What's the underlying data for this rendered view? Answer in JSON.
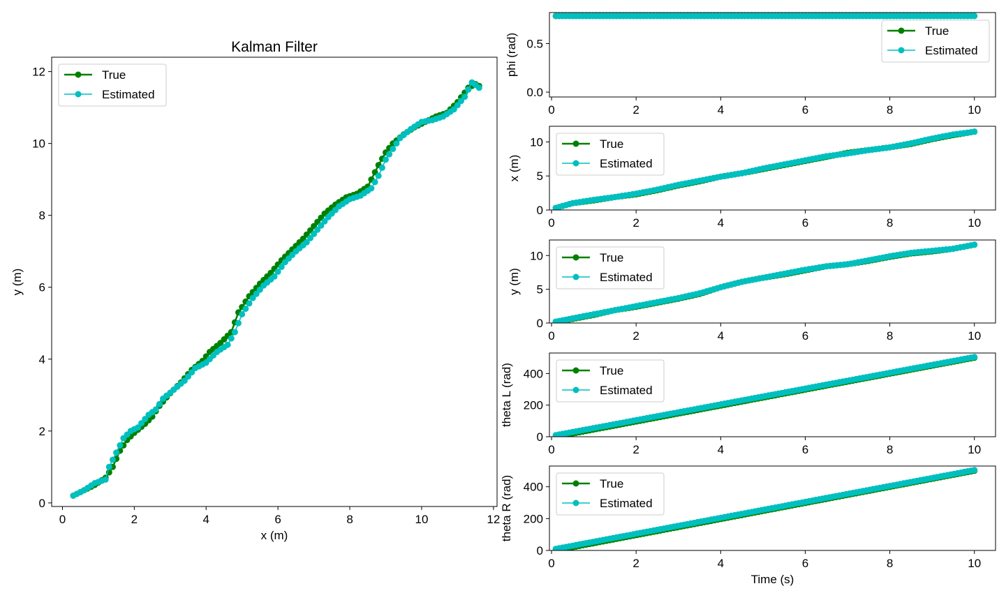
{
  "figure": {
    "colors": {
      "true": "#008000",
      "estimated": "#00bfbf",
      "axis": "#000000",
      "background": "#ffffff"
    }
  },
  "chart_data": [
    {
      "id": "trajectory",
      "type": "line",
      "title": "Kalman Filter",
      "xlabel": "x (m)",
      "ylabel": "y (m)",
      "xlim": [
        -0.3,
        12.1
      ],
      "ylim": [
        -0.1,
        12.4
      ],
      "xticks": [
        0,
        2,
        4,
        6,
        8,
        10,
        12
      ],
      "yticks": [
        0,
        2,
        4,
        6,
        8,
        10,
        12
      ],
      "grid": false,
      "legend": "upper-left",
      "series": [
        {
          "name": "True",
          "color": "#008000",
          "marker": "o",
          "x": [
            0.3,
            0.6,
            0.9,
            1.2,
            1.4,
            1.6,
            1.8,
            2.0,
            2.3,
            2.5,
            2.7,
            3.0,
            3.3,
            3.6,
            3.9,
            4.1,
            4.4,
            4.7,
            4.9,
            5.2,
            5.5,
            5.8,
            6.1,
            6.4,
            6.7,
            7.0,
            7.3,
            7.6,
            7.9,
            8.2,
            8.5,
            8.8,
            9.0,
            9.2,
            9.5,
            9.8,
            10.1,
            10.4,
            10.7,
            11.0,
            11.3,
            11.5,
            11.6
          ],
          "y": [
            0.2,
            0.35,
            0.5,
            0.7,
            1.0,
            1.45,
            1.75,
            1.95,
            2.2,
            2.4,
            2.7,
            3.05,
            3.35,
            3.7,
            3.95,
            4.2,
            4.45,
            4.75,
            5.3,
            5.75,
            6.1,
            6.4,
            6.75,
            7.05,
            7.35,
            7.7,
            8.05,
            8.3,
            8.5,
            8.6,
            8.8,
            9.4,
            9.75,
            10.0,
            10.25,
            10.45,
            10.6,
            10.75,
            10.85,
            11.15,
            11.55,
            11.65,
            11.6
          ]
        },
        {
          "name": "Estimated",
          "color": "#00bfbf",
          "marker": "o",
          "x": [
            0.3,
            0.6,
            0.9,
            1.2,
            1.3,
            1.5,
            1.7,
            1.9,
            2.1,
            2.4,
            2.6,
            2.8,
            3.1,
            3.4,
            3.7,
            4.0,
            4.3,
            4.6,
            4.8,
            5.0,
            5.3,
            5.6,
            5.9,
            6.2,
            6.5,
            6.8,
            7.1,
            7.4,
            7.7,
            8.0,
            8.3,
            8.6,
            8.8,
            9.0,
            9.2,
            9.4,
            9.7,
            10.0,
            10.3,
            10.6,
            10.9,
            11.2,
            11.4,
            11.6
          ],
          "y": [
            0.2,
            0.35,
            0.55,
            0.65,
            1.0,
            1.4,
            1.8,
            2.0,
            2.1,
            2.45,
            2.6,
            2.9,
            3.15,
            3.4,
            3.75,
            3.9,
            4.2,
            4.4,
            4.75,
            5.25,
            5.7,
            6.05,
            6.3,
            6.7,
            7.0,
            7.25,
            7.6,
            7.95,
            8.25,
            8.45,
            8.55,
            8.75,
            9.1,
            9.55,
            9.85,
            10.15,
            10.4,
            10.6,
            10.65,
            10.75,
            10.95,
            11.3,
            11.7,
            11.55
          ]
        }
      ]
    },
    {
      "id": "phi",
      "type": "line",
      "ylabel": "phi (rad)",
      "xlim": [
        -0.05,
        10.5
      ],
      "ylim": [
        -0.05,
        0.82
      ],
      "xticks": [
        0,
        2,
        4,
        6,
        8,
        10
      ],
      "yticks": [
        0.0,
        0.5
      ],
      "yticklabels": [
        "0.0",
        "0.5"
      ],
      "grid": false,
      "legend": "upper-right",
      "series": [
        {
          "name": "True",
          "color": "#008000",
          "x": [
            0.1,
            10
          ],
          "y": [
            0.785,
            0.785
          ]
        },
        {
          "name": "Estimated",
          "color": "#00bfbf",
          "x": [
            0.1,
            10
          ],
          "y": [
            0.785,
            0.785
          ]
        }
      ]
    },
    {
      "id": "x_state",
      "type": "line",
      "ylabel": "x (m)",
      "xlim": [
        -0.05,
        10.5
      ],
      "ylim": [
        0,
        12.3
      ],
      "xticks": [
        0,
        2,
        4,
        6,
        8,
        10
      ],
      "yticks": [
        0,
        5,
        10
      ],
      "grid": false,
      "legend": "upper-left",
      "series": [
        {
          "name": "True",
          "color": "#008000",
          "x": [
            0.1,
            0.5,
            1,
            1.5,
            2,
            2.5,
            3,
            3.5,
            4,
            4.5,
            5,
            5.5,
            6,
            6.5,
            7,
            7.5,
            8,
            8.5,
            9,
            9.5,
            10
          ],
          "y": [
            0.3,
            1.0,
            1.4,
            1.9,
            2.3,
            2.9,
            3.6,
            4.2,
            4.9,
            5.4,
            6.0,
            6.6,
            7.2,
            7.8,
            8.4,
            8.8,
            9.2,
            9.7,
            10.4,
            11.0,
            11.5
          ]
        },
        {
          "name": "Estimated",
          "color": "#00bfbf",
          "x": [
            0.1,
            0.5,
            1,
            1.5,
            2,
            2.5,
            3,
            3.5,
            4,
            4.5,
            5,
            5.5,
            6,
            6.5,
            7,
            7.5,
            8,
            8.5,
            9,
            9.5,
            10
          ],
          "y": [
            0.3,
            1.0,
            1.5,
            1.9,
            2.4,
            3.0,
            3.7,
            4.3,
            4.9,
            5.4,
            6.1,
            6.7,
            7.3,
            7.9,
            8.3,
            8.8,
            9.2,
            9.8,
            10.5,
            11.1,
            11.5
          ]
        }
      ]
    },
    {
      "id": "y_state",
      "type": "line",
      "ylabel": "y (m)",
      "xlim": [
        -0.05,
        10.5
      ],
      "ylim": [
        0,
        12.3
      ],
      "xticks": [
        0,
        2,
        4,
        6,
        8,
        10
      ],
      "yticks": [
        0,
        5,
        10
      ],
      "grid": false,
      "legend": "upper-left",
      "series": [
        {
          "name": "True",
          "color": "#008000",
          "x": [
            0.1,
            0.5,
            1,
            1.5,
            2,
            2.5,
            3,
            3.5,
            4,
            4.5,
            5,
            5.5,
            6,
            6.5,
            7,
            7.5,
            8,
            8.5,
            9,
            9.5,
            10
          ],
          "y": [
            0.2,
            0.6,
            1.2,
            1.9,
            2.4,
            3.0,
            3.6,
            4.3,
            5.3,
            6.1,
            6.7,
            7.2,
            7.8,
            8.4,
            8.7,
            9.2,
            9.8,
            10.3,
            10.6,
            11.0,
            11.6
          ]
        },
        {
          "name": "Estimated",
          "color": "#00bfbf",
          "x": [
            0.1,
            0.5,
            1,
            1.5,
            2,
            2.5,
            3,
            3.5,
            4,
            4.5,
            5,
            5.5,
            6,
            6.5,
            7,
            7.5,
            8,
            8.5,
            9,
            9.5,
            10
          ],
          "y": [
            0.2,
            0.7,
            1.3,
            1.9,
            2.5,
            3.1,
            3.7,
            4.4,
            5.3,
            6.1,
            6.7,
            7.3,
            7.9,
            8.4,
            8.7,
            9.3,
            9.9,
            10.4,
            10.7,
            11.0,
            11.6
          ]
        }
      ]
    },
    {
      "id": "theta_l",
      "type": "line",
      "ylabel": "theta L (rad)",
      "xlim": [
        -0.05,
        10.5
      ],
      "ylim": [
        0,
        530
      ],
      "xticks": [
        0,
        2,
        4,
        6,
        8,
        10
      ],
      "yticks": [
        0,
        200,
        400
      ],
      "grid": false,
      "legend": "upper-left",
      "series": [
        {
          "name": "True",
          "color": "#008000",
          "x": [
            0.1,
            10
          ],
          "y": [
            0,
            500
          ]
        },
        {
          "name": "Estimated",
          "color": "#00bfbf",
          "x": [
            0.1,
            10
          ],
          "y": [
            10,
            505
          ]
        }
      ]
    },
    {
      "id": "theta_r",
      "type": "line",
      "ylabel": "theta R (rad)",
      "xlabel": "Time (s)",
      "xlim": [
        -0.05,
        10.5
      ],
      "ylim": [
        0,
        530
      ],
      "xticks": [
        0,
        2,
        4,
        6,
        8,
        10
      ],
      "yticks": [
        0,
        200,
        400
      ],
      "grid": false,
      "legend": "upper-left",
      "series": [
        {
          "name": "True",
          "color": "#008000",
          "x": [
            0.1,
            10
          ],
          "y": [
            0,
            500
          ]
        },
        {
          "name": "Estimated",
          "color": "#00bfbf",
          "x": [
            0.1,
            10
          ],
          "y": [
            10,
            505
          ]
        }
      ]
    }
  ]
}
